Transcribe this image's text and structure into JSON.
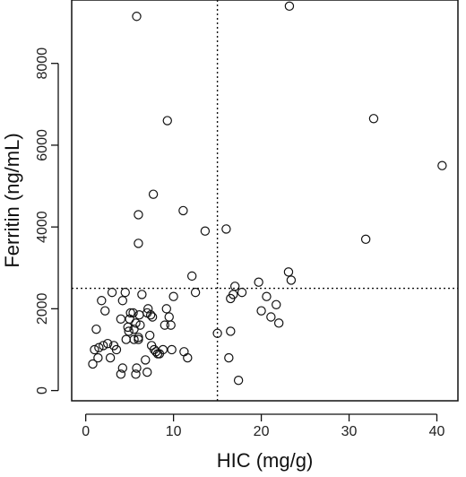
{
  "chart_data": {
    "type": "scatter",
    "title": "",
    "xlabel": "HIC (mg/g)",
    "ylabel": "Ferritin (ng/mL)",
    "xlim": [
      -1.6,
      42.4
    ],
    "ylim": [
      -250,
      9550
    ],
    "xticks": [
      0,
      10,
      20,
      30,
      40
    ],
    "yticks": [
      0,
      2000,
      4000,
      6000,
      8000
    ],
    "xtick_labels": [
      "0",
      "10",
      "20",
      "30",
      "40"
    ],
    "ytick_labels": [
      "0",
      "2000",
      "4000",
      "6000",
      "8000"
    ],
    "grid": false,
    "marker": "open-circle",
    "reference_lines": [
      {
        "axis": "x",
        "value": 15,
        "style": "dotted"
      },
      {
        "axis": "y",
        "value": 2500,
        "style": "dotted"
      }
    ],
    "series": [
      {
        "points": [
          [
            0.8,
            650
          ],
          [
            1.0,
            1000
          ],
          [
            1.2,
            1500
          ],
          [
            1.4,
            800
          ],
          [
            1.5,
            1050
          ],
          [
            1.8,
            2200
          ],
          [
            2.0,
            1100
          ],
          [
            2.2,
            1950
          ],
          [
            2.5,
            1150
          ],
          [
            2.8,
            800
          ],
          [
            3.0,
            2400
          ],
          [
            3.2,
            1100
          ],
          [
            3.5,
            1000
          ],
          [
            4.0,
            1750
          ],
          [
            4.0,
            400
          ],
          [
            4.2,
            550
          ],
          [
            4.2,
            2200
          ],
          [
            4.5,
            2400
          ],
          [
            4.6,
            1250
          ],
          [
            4.8,
            1550
          ],
          [
            4.9,
            1450
          ],
          [
            5.0,
            1750
          ],
          [
            5.1,
            1900
          ],
          [
            5.4,
            1900
          ],
          [
            5.5,
            1500
          ],
          [
            5.5,
            1250
          ],
          [
            5.7,
            1650
          ],
          [
            5.7,
            400
          ],
          [
            5.8,
            550
          ],
          [
            6.0,
            1250
          ],
          [
            6.0,
            1300
          ],
          [
            6.1,
            1850
          ],
          [
            6.2,
            1600
          ],
          [
            6.4,
            2350
          ],
          [
            6.8,
            750
          ],
          [
            7.0,
            1900
          ],
          [
            7.0,
            450
          ],
          [
            7.1,
            2000
          ],
          [
            7.3,
            1350
          ],
          [
            7.4,
            1850
          ],
          [
            7.5,
            1100
          ],
          [
            7.6,
            1800
          ],
          [
            7.8,
            1000
          ],
          [
            8.0,
            950
          ],
          [
            8.2,
            900
          ],
          [
            8.4,
            900
          ],
          [
            8.8,
            1000
          ],
          [
            9.0,
            1600
          ],
          [
            9.2,
            2000
          ],
          [
            9.5,
            1800
          ],
          [
            9.7,
            1600
          ],
          [
            9.8,
            1000
          ],
          [
            10.0,
            2300
          ],
          [
            11.2,
            950
          ],
          [
            11.6,
            800
          ],
          [
            12.1,
            2800
          ],
          [
            12.5,
            2400
          ],
          [
            15.0,
            1400
          ],
          [
            16.3,
            800
          ],
          [
            16.5,
            1450
          ],
          [
            16.5,
            2250
          ],
          [
            16.8,
            2350
          ],
          [
            17.0,
            2550
          ],
          [
            17.4,
            250
          ],
          [
            17.8,
            2400
          ],
          [
            19.7,
            2650
          ],
          [
            20.0,
            1950
          ],
          [
            20.6,
            2300
          ],
          [
            21.1,
            1800
          ],
          [
            21.7,
            2100
          ],
          [
            22.0,
            1650
          ],
          [
            23.1,
            2900
          ],
          [
            23.4,
            2700
          ],
          [
            6.0,
            3600
          ],
          [
            6.0,
            4300
          ],
          [
            7.7,
            4800
          ],
          [
            11.1,
            4400
          ],
          [
            13.6,
            3900
          ],
          [
            16.0,
            3950
          ],
          [
            31.9,
            3700
          ],
          [
            40.6,
            5500
          ],
          [
            9.3,
            6600
          ],
          [
            32.8,
            6650
          ],
          [
            5.8,
            9150
          ],
          [
            23.2,
            9400
          ]
        ]
      }
    ]
  }
}
